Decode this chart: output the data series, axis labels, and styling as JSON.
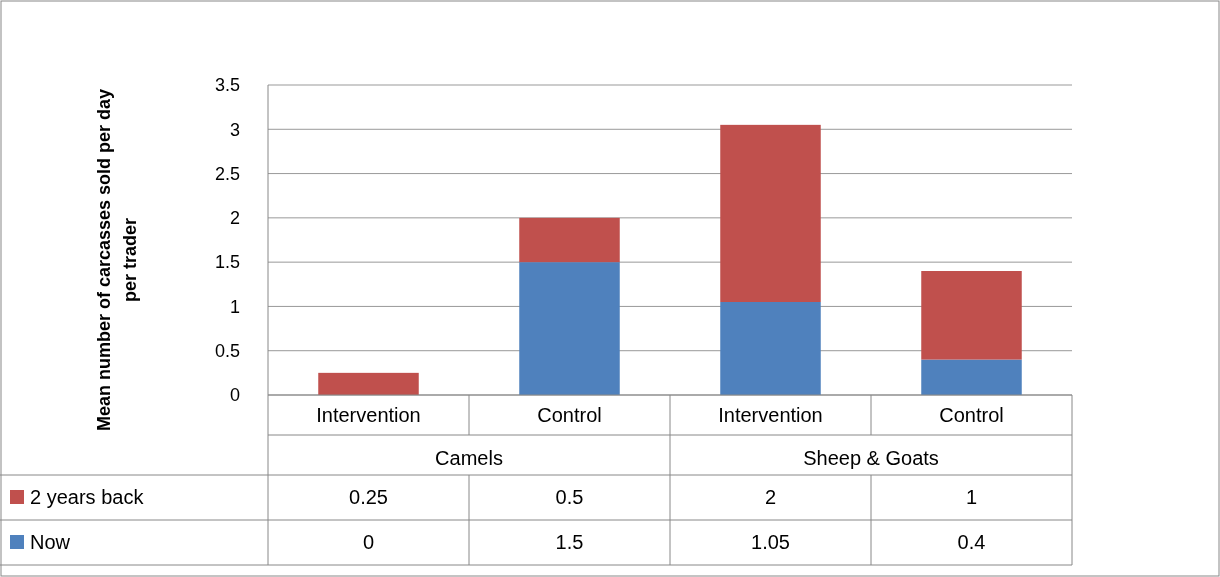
{
  "chart_data": {
    "type": "bar",
    "stacked": true,
    "ylabel": "Mean number of carcasses sold per day per trader",
    "categories": [
      "Intervention",
      "Control",
      "Intervention",
      "Control"
    ],
    "annotations": [
      "Camels",
      "Sheep & Goats"
    ],
    "series": [
      {
        "name": "Now",
        "color": "#4f81bd",
        "values": [
          0,
          1.5,
          1.05,
          0.4
        ]
      },
      {
        "name": "2 years back",
        "color": "#c0504d",
        "values": [
          0.25,
          0.5,
          2,
          1
        ]
      }
    ],
    "ylim": [
      0,
      3.5
    ],
    "yticks": [
      0,
      0.5,
      1,
      1.5,
      2,
      2.5,
      3,
      3.5
    ],
    "grid": "y",
    "legend": "bottom",
    "data_labels": true
  }
}
